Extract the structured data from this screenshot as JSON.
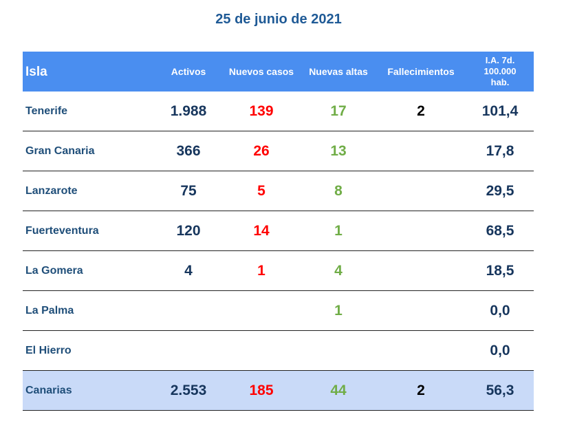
{
  "title": "25 de junio de 2021",
  "table": {
    "headers": {
      "isla": "Isla",
      "activos": "Activos",
      "nuevos": "Nuevos casos",
      "altas": "Nuevas altas",
      "fallecimientos": "Fallecimientos",
      "ia_line1": "I.A. 7d.",
      "ia_line2": "100.000",
      "ia_line3": "hab."
    },
    "rows": [
      {
        "isla": "Tenerife",
        "activos": "1.988",
        "nuevos": "139",
        "altas": "17",
        "fallecimientos": "2",
        "ia": "101,4"
      },
      {
        "isla": "Gran Canaria",
        "activos": "366",
        "nuevos": "26",
        "altas": "13",
        "fallecimientos": "",
        "ia": "17,8"
      },
      {
        "isla": "Lanzarote",
        "activos": "75",
        "nuevos": "5",
        "altas": "8",
        "fallecimientos": "",
        "ia": "29,5"
      },
      {
        "isla": "Fuerteventura",
        "activos": "120",
        "nuevos": "14",
        "altas": "1",
        "fallecimientos": "",
        "ia": "68,5"
      },
      {
        "isla": "La Gomera",
        "activos": "4",
        "nuevos": "1",
        "altas": "4",
        "fallecimientos": "",
        "ia": "18,5"
      },
      {
        "isla": "La Palma",
        "activos": "",
        "nuevos": "",
        "altas": "1",
        "fallecimientos": "",
        "ia": "0,0"
      },
      {
        "isla": "El Hierro",
        "activos": "",
        "nuevos": "",
        "altas": "",
        "fallecimientos": "",
        "ia": "0,0"
      }
    ],
    "total": {
      "isla": "Canarias",
      "activos": "2.553",
      "nuevos": "185",
      "altas": "44",
      "fallecimientos": "2",
      "ia": "56,3"
    }
  },
  "colors": {
    "title": "#1f5a96",
    "header_bg": "#4a8ef0",
    "total_bg": "#c9daf8",
    "nuevos": "#ff0000",
    "altas": "#70ad47"
  }
}
